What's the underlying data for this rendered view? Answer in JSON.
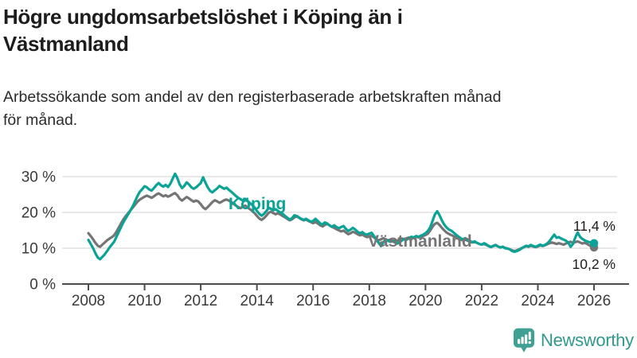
{
  "header": {
    "title": "Högre ungdomsarbetslöshet i Köping än i Västmanland",
    "title_lines": [
      "Högre ungdomsarbetslöshet i Köping än i",
      "Västmanland"
    ],
    "subtitle": "Arbetssökande som andel av den registerbaserade arbetskraften månad för månad.",
    "subtitle_lines": [
      "Arbetssökande som andel av den registerbaserade arbetskraften månad",
      "för månad."
    ]
  },
  "footer": {
    "brand": "Newsworthy",
    "brand_color": "#2f9a8c",
    "logo_icon": "bar-chart-bubble-icon",
    "logo_icon_color": "#3fa093"
  },
  "chart_data": {
    "type": "line",
    "title": "Högre ungdomsarbetslöshet i Köping än i Västmanland",
    "xlabel": "",
    "ylabel": "",
    "x_start_year": 2008,
    "x_step_months": 1,
    "x_end_year": 2026,
    "xlim": [
      2007.1,
      2027.2
    ],
    "ylim": [
      0,
      33
    ],
    "grid": "horizontal",
    "x_ticks": [
      2008,
      2010,
      2012,
      2014,
      2016,
      2018,
      2020,
      2022,
      2024,
      2026
    ],
    "x_tick_labels": [
      "2008",
      "2010",
      "2012",
      "2014",
      "2016",
      "2018",
      "2020",
      "2022",
      "2024",
      "2026"
    ],
    "y_ticks": [
      0,
      10,
      20,
      30
    ],
    "y_tick_labels": [
      "0 %",
      "10 %",
      "20 %",
      "30 %"
    ],
    "legend_position": "inline-labels",
    "series": [
      {
        "name": "Köping",
        "color": "#0aa396",
        "end_label": "11,4 %",
        "end_value": 11.4,
        "values": [
          12.3,
          11.2,
          10.0,
          8.6,
          7.4,
          6.9,
          7.6,
          8.3,
          9.2,
          10.2,
          11.0,
          11.8,
          13.2,
          14.6,
          16.0,
          17.3,
          18.4,
          19.5,
          20.6,
          21.8,
          23.2,
          24.6,
          25.8,
          26.5,
          27.3,
          27.0,
          26.4,
          26.1,
          26.8,
          27.6,
          28.2,
          27.6,
          27.2,
          27.7,
          27.1,
          28.0,
          29.4,
          30.8,
          29.6,
          27.8,
          26.8,
          27.4,
          28.4,
          27.8,
          27.0,
          26.6,
          27.0,
          27.6,
          28.2,
          29.8,
          28.3,
          27.0,
          26.0,
          25.6,
          26.2,
          26.7,
          27.4,
          27.0,
          26.6,
          26.9,
          26.3,
          25.8,
          25.2,
          24.6,
          24.1,
          23.7,
          23.3,
          23.8,
          23.2,
          22.6,
          22.1,
          21.4,
          20.4,
          19.6,
          19.1,
          19.6,
          20.3,
          21.3,
          21.0,
          20.6,
          20.9,
          20.4,
          20.0,
          19.6,
          19.0,
          18.5,
          18.0,
          18.4,
          19.2,
          19.0,
          18.6,
          18.2,
          17.9,
          18.2,
          17.8,
          17.4,
          17.6,
          18.2,
          17.6,
          16.9,
          16.6,
          17.2,
          16.9,
          16.4,
          16.0,
          16.4,
          15.9,
          15.6,
          15.9,
          16.2,
          15.4,
          14.8,
          15.2,
          15.7,
          15.2,
          14.6,
          14.2,
          14.5,
          14.0,
          13.8,
          14.1,
          14.3,
          13.4,
          12.4,
          11.5,
          10.6,
          11.6,
          12.4,
          12.1,
          11.8,
          12.0,
          11.6,
          11.3,
          11.7,
          12.2,
          12.6,
          12.4,
          12.8,
          13.2,
          13.0,
          13.4,
          13.2,
          13.5,
          13.8,
          14.2,
          14.8,
          15.8,
          17.6,
          19.4,
          20.3,
          19.2,
          17.8,
          16.6,
          15.8,
          15.2,
          14.9,
          14.4,
          13.8,
          13.3,
          12.8,
          12.5,
          12.8,
          12.4,
          12.0,
          11.7,
          11.9,
          11.5,
          11.2,
          11.0,
          11.4,
          11.1,
          10.6,
          10.3,
          10.7,
          10.9,
          10.5,
          10.2,
          10.4,
          10.0,
          9.9,
          9.7,
          9.2,
          9.0,
          9.2,
          9.5,
          9.9,
          10.3,
          10.7,
          10.5,
          10.9,
          10.6,
          10.4,
          10.7,
          11.0,
          10.7,
          10.9,
          11.3,
          12.0,
          12.9,
          13.8,
          12.9,
          13.1,
          12.7,
          12.4,
          12.1,
          11.6,
          10.4,
          11.2,
          13.0,
          14.4,
          13.2,
          12.6,
          12.2,
          11.9,
          11.7,
          11.5,
          11.4
        ]
      },
      {
        "name": "Västmanland",
        "color": "#757575",
        "end_label": "10,2 %",
        "end_value": 10.2,
        "values": [
          14.2,
          13.4,
          12.5,
          11.5,
          10.7,
          10.4,
          11.0,
          11.6,
          12.2,
          12.7,
          13.1,
          13.6,
          14.6,
          15.8,
          17.0,
          18.1,
          19.0,
          19.8,
          20.6,
          21.4,
          22.2,
          23.0,
          23.6,
          24.0,
          24.4,
          24.7,
          24.4,
          24.1,
          24.5,
          25.0,
          25.3,
          24.9,
          24.5,
          24.8,
          24.4,
          24.7,
          25.1,
          25.4,
          24.8,
          23.8,
          23.3,
          23.8,
          24.3,
          23.9,
          23.4,
          23.0,
          23.3,
          23.0,
          22.3,
          21.4,
          20.9,
          21.5,
          22.2,
          22.9,
          23.4,
          23.1,
          22.7,
          23.0,
          23.4,
          23.6,
          23.3,
          22.9,
          22.4,
          21.9,
          21.5,
          21.2,
          21.6,
          21.9,
          21.4,
          20.9,
          20.4,
          19.8,
          19.0,
          18.3,
          17.9,
          18.4,
          19.1,
          19.9,
          20.2,
          19.8,
          19.5,
          19.8,
          19.4,
          19.0,
          18.6,
          18.2,
          17.8,
          18.1,
          18.6,
          18.9,
          18.5,
          18.1,
          17.8,
          18.0,
          17.6,
          17.3,
          17.0,
          17.3,
          16.9,
          16.4,
          16.1,
          16.5,
          16.8,
          16.4,
          16.0,
          15.7,
          15.3,
          15.0,
          14.7,
          14.9,
          14.4,
          13.9,
          14.2,
          14.6,
          14.3,
          13.9,
          13.6,
          13.8,
          13.4,
          13.1,
          13.3,
          13.5,
          13.0,
          12.5,
          12.2,
          12.5,
          12.8,
          12.5,
          12.2,
          12.4,
          12.1,
          12.3,
          12.1,
          12.4,
          12.7,
          12.5,
          12.8,
          13.0,
          12.8,
          13.0,
          13.2,
          13.0,
          13.2,
          13.4,
          13.7,
          14.1,
          14.9,
          16.0,
          16.8,
          17.1,
          16.5,
          15.7,
          15.0,
          14.4,
          14.0,
          13.7,
          13.4,
          13.0,
          12.7,
          12.4,
          12.2,
          12.4,
          12.1,
          11.8,
          11.6,
          11.8,
          11.5,
          11.2,
          11.0,
          11.2,
          10.9,
          10.6,
          10.4,
          10.6,
          10.8,
          10.5,
          10.2,
          10.4,
          10.1,
          9.9,
          9.7,
          9.4,
          9.2,
          9.4,
          9.7,
          10.0,
          10.3,
          10.6,
          10.4,
          10.7,
          10.5,
          10.3,
          10.5,
          10.8,
          10.6,
          10.8,
          11.1,
          11.4,
          11.6,
          11.4,
          11.2,
          11.4,
          11.2,
          11.0,
          11.3,
          11.6,
          11.8,
          11.5,
          11.7,
          11.9,
          11.6,
          11.3,
          11.5,
          11.2,
          10.8,
          10.5,
          10.2
        ]
      }
    ]
  }
}
